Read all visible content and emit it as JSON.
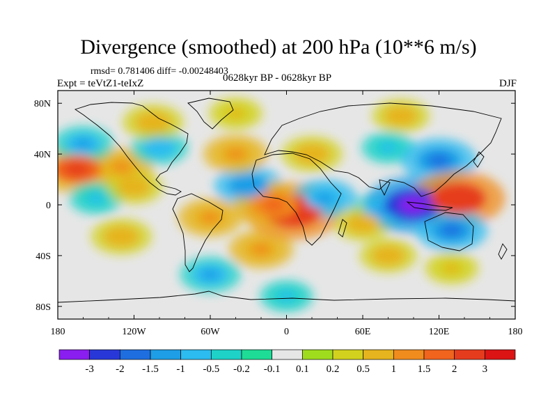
{
  "chart_data": {
    "type": "heatmap",
    "title": "Divergence (smoothed) at 200 hPa (10**6 m/s)",
    "stats": "rmsd= 0.781406 diff= -0.00248403",
    "experiment": "Expt = teVtZ1-teIxZ",
    "period": "0628kyr BP - 0628kyr BP",
    "season": "DJF",
    "projection": "cylindrical equidistant",
    "xlim": [
      -180,
      180
    ],
    "ylim": [
      -90,
      90
    ],
    "x_ticks": [
      {
        "value": -180,
        "label": "180"
      },
      {
        "value": -120,
        "label": "120W"
      },
      {
        "value": -60,
        "label": "60W"
      },
      {
        "value": 0,
        "label": "0"
      },
      {
        "value": 60,
        "label": "60E"
      },
      {
        "value": 120,
        "label": "120E"
      },
      {
        "value": 180,
        "label": "180"
      }
    ],
    "y_ticks": [
      {
        "value": 80,
        "label": "80N"
      },
      {
        "value": 40,
        "label": "40N"
      },
      {
        "value": 0,
        "label": "0"
      },
      {
        "value": -40,
        "label": "40S"
      },
      {
        "value": -80,
        "label": "80S"
      }
    ],
    "colorbar": {
      "levels": [
        "-3",
        "-2",
        "-1.5",
        "-1",
        "-0.5",
        "-0.2",
        "-0.1",
        "0.1",
        "0.2",
        "0.5",
        "1",
        "1.5",
        "2",
        "3"
      ],
      "colors": [
        "#8a1ef0",
        "#2838d8",
        "#1e6ee0",
        "#1e9ee6",
        "#2cbcf0",
        "#1ed2c8",
        "#1edc96",
        "#e6e6e6",
        "#a0dc1e",
        "#d2d21e",
        "#e6b41e",
        "#f08c1e",
        "#f0641e",
        "#e63c1e",
        "#dc1414"
      ]
    },
    "features": [
      {
        "name": "N Pacific positive",
        "lon": -165,
        "lat": 28,
        "value": 2.2
      },
      {
        "name": "NE Pacific positive",
        "lon": -130,
        "lat": 30,
        "value": 1.2
      },
      {
        "name": "N Pacific negative",
        "lon": -160,
        "lat": 48,
        "value": -1.0
      },
      {
        "name": "Tropical Pacific negative",
        "lon": -150,
        "lat": 5,
        "value": -0.6
      },
      {
        "name": "Central Pacific positive",
        "lon": -120,
        "lat": 14,
        "value": 0.8
      },
      {
        "name": "S Pacific positive",
        "lon": -130,
        "lat": -25,
        "value": 1.0
      },
      {
        "name": "N America negative",
        "lon": -100,
        "lat": 45,
        "value": -0.8
      },
      {
        "name": "Canada positive",
        "lon": -105,
        "lat": 65,
        "value": 1.0
      },
      {
        "name": "Greenland positive",
        "lon": -40,
        "lat": 72,
        "value": 0.6
      },
      {
        "name": "Atlantic negative",
        "lon": -30,
        "lat": 15,
        "value": -1.4
      },
      {
        "name": "N Atlantic positive",
        "lon": -40,
        "lat": 40,
        "value": 1.2
      },
      {
        "name": "S America positive",
        "lon": -60,
        "lat": -10,
        "value": 1.2
      },
      {
        "name": "S Atlantic positive",
        "lon": -20,
        "lat": -35,
        "value": 1.2
      },
      {
        "name": "Gulf of Guinea positive",
        "lon": 5,
        "lat": -5,
        "value": 3.0
      },
      {
        "name": "Equatorial Atlantic positive",
        "lon": -10,
        "lat": 0,
        "value": 2.0
      },
      {
        "name": "Africa negative",
        "lon": 30,
        "lat": 5,
        "value": -1.2
      },
      {
        "name": "Europe positive",
        "lon": 20,
        "lat": 40,
        "value": 1.0
      },
      {
        "name": "Siberia positive",
        "lon": 90,
        "lat": 70,
        "value": 0.8
      },
      {
        "name": "Central Asia negative",
        "lon": 80,
        "lat": 45,
        "value": -0.6
      },
      {
        "name": "E Asia negative",
        "lon": 120,
        "lat": 35,
        "value": -1.8
      },
      {
        "name": "Indian Ocean negative",
        "lon": 75,
        "lat": -5,
        "value": -1.0
      },
      {
        "name": "Indian Ocean positive",
        "lon": 60,
        "lat": -15,
        "value": 0.8
      },
      {
        "name": "Maritime Continent negative",
        "lon": 100,
        "lat": 0,
        "value": -3.0
      },
      {
        "name": "W Pacific positive",
        "lon": 135,
        "lat": 5,
        "value": 2.8
      },
      {
        "name": "Australia negative",
        "lon": 130,
        "lat": -20,
        "value": -1.6
      },
      {
        "name": "S Indian Ocean positive",
        "lon": 80,
        "lat": -40,
        "value": 0.8
      },
      {
        "name": "Southern Ocean negative",
        "lon": -60,
        "lat": -55,
        "value": -1.0
      },
      {
        "name": "Southern Ocean positive",
        "lon": 130,
        "lat": -50,
        "value": 0.6
      },
      {
        "name": "Antarctic negative",
        "lon": 0,
        "lat": -72,
        "value": -0.6
      }
    ]
  }
}
